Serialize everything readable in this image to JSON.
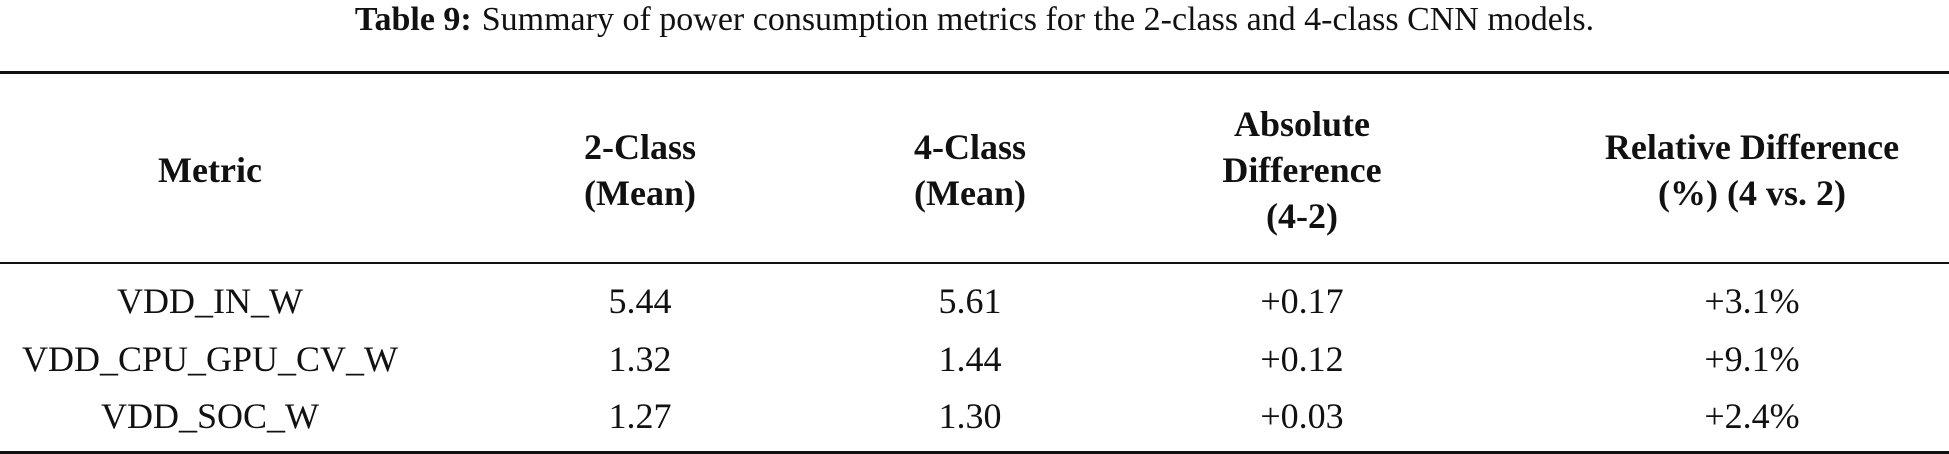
{
  "caption": {
    "label": "Table 9:",
    "text": "Summary of power consumption metrics for the 2-class and 4-class CNN models."
  },
  "table": {
    "headers": [
      [
        "Metric"
      ],
      [
        "2-Class",
        "(Mean)"
      ],
      [
        "4-Class",
        "(Mean)"
      ],
      [
        "Absolute",
        "Difference",
        "(4-2)"
      ],
      [
        "Relative Difference",
        "(%) (4 vs. 2)"
      ]
    ],
    "rows": [
      [
        "VDD_IN_W",
        "5.44",
        "5.61",
        "+0.17",
        "+3.1%"
      ],
      [
        "VDD_CPU_GPU_CV_W",
        "1.32",
        "1.44",
        "+0.12",
        "+9.1%"
      ],
      [
        "VDD_SOC_W",
        "1.27",
        "1.30",
        "+0.03",
        "+2.4%"
      ]
    ]
  }
}
